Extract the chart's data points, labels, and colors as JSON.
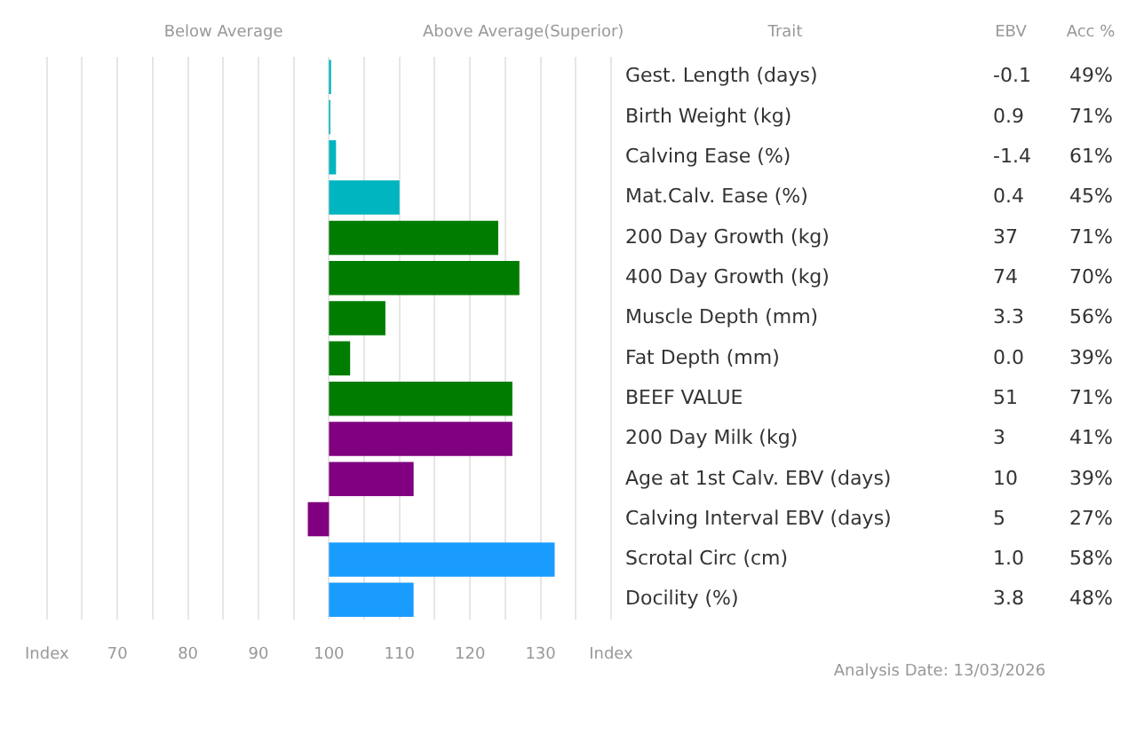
{
  "chart_data": {
    "type": "bar",
    "orientation": "horizontal",
    "ylabel": "Trait",
    "categories": [
      "Gest. Length (days)",
      "Birth Weight (kg)",
      "Calving Ease (%)",
      "Mat.Calv. Ease (%)",
      "200 Day Growth (kg)",
      "400 Day Growth (kg)",
      "Muscle Depth (mm)",
      "Fat Depth (mm)",
      "BEEF VALUE",
      "200 Day Milk (kg)",
      "Age at 1st Calv. EBV (days)",
      "Calving Interval EBV (days)",
      "Scrotal Circ (cm)",
      "Docility (%)"
    ],
    "base": [
      100,
      100,
      100,
      100,
      100,
      100,
      100,
      100,
      100,
      100,
      100,
      100,
      100,
      100
    ],
    "values": [
      0.3,
      0.2,
      1,
      10,
      24,
      27,
      8,
      3,
      26,
      26,
      12,
      -3,
      32,
      12
    ],
    "colors": [
      "#00b5c0",
      "#00b5c0",
      "#00b5c0",
      "#00b5c0",
      "#007d00",
      "#007d00",
      "#007d00",
      "#007d00",
      "#007d00",
      "#800080",
      "#800080",
      "#800080",
      "#1a9cff",
      "#1a9cff"
    ],
    "xlim": [
      60,
      140
    ],
    "xticks": [
      {
        "value": 60,
        "label": "Index"
      },
      {
        "value": 65,
        "label": null
      },
      70,
      {
        "value": 75,
        "label": null
      },
      80,
      {
        "value": 85,
        "label": null
      },
      90,
      {
        "value": 95,
        "label": null
      },
      100,
      {
        "value": 105,
        "label": null
      },
      110,
      {
        "value": 115,
        "label": null
      },
      120,
      {
        "value": 125,
        "label": null
      },
      130,
      {
        "value": 135,
        "label": null
      },
      {
        "value": 140,
        "label": "Index"
      }
    ],
    "grid": "x",
    "annotations": [
      "Below Average",
      "Above Average(Superior)",
      "EBV",
      "Acc %",
      "Analysis Date: 13/03/2026",
      "-0.1",
      "0.9",
      "-1.4",
      "0.4",
      "37",
      "74",
      "3.3",
      "0.0",
      "51",
      "3",
      "10",
      "5",
      "1.0",
      "3.8",
      "49%",
      "71%",
      "61%",
      "45%",
      "71%",
      "70%",
      "56%",
      "39%",
      "71%",
      "41%",
      "39%",
      "27%",
      "58%",
      "48%"
    ]
  }
}
